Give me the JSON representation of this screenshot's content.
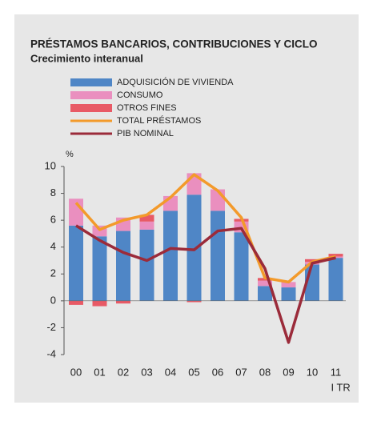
{
  "chart_data": {
    "type": "bar_line",
    "title": "PRÉSTAMOS BANCARIOS, CONTRIBUCIONES Y CICLO",
    "subtitle": "Crecimiento interanual",
    "y_unit": "%",
    "x_note": "I TR",
    "categories": [
      "00",
      "01",
      "02",
      "03",
      "04",
      "05",
      "06",
      "07",
      "08",
      "09",
      "10",
      "11"
    ],
    "series": [
      {
        "name": "ADQUISICIÓN DE VIVIENDA",
        "kind": "bar",
        "color": "#4f86c6",
        "values": [
          5.6,
          4.8,
          5.2,
          5.3,
          6.7,
          7.9,
          6.7,
          5.1,
          1.1,
          1.0,
          2.7,
          3.2
        ]
      },
      {
        "name": "CONSUMO",
        "kind": "bar",
        "color": "#ea8fbf",
        "values": [
          2.0,
          0.8,
          1.0,
          0.6,
          1.1,
          1.6,
          1.6,
          0.8,
          0.4,
          0.4,
          0.2,
          0.1
        ]
      },
      {
        "name": "OTROS FINES",
        "kind": "bar",
        "color": "#e85a66",
        "values": [
          -0.3,
          -0.4,
          -0.2,
          0.5,
          0,
          -0.1,
          0,
          0.2,
          0.2,
          0,
          0.2,
          0.2
        ]
      },
      {
        "name": "TOTAL PRÉSTAMOS",
        "kind": "line",
        "color": "#f39a2b",
        "values": [
          7.3,
          5.3,
          6.0,
          6.4,
          7.7,
          9.4,
          8.2,
          6.2,
          1.7,
          1.4,
          2.9,
          3.3
        ]
      },
      {
        "name": "PIB NOMINAL",
        "kind": "line",
        "color": "#9b2b3a",
        "values": [
          5.6,
          4.5,
          3.6,
          3.0,
          3.9,
          3.8,
          5.2,
          5.4,
          2.4,
          -3.1,
          2.8,
          3.2
        ]
      }
    ],
    "ylim": [
      -4,
      10
    ],
    "yticks": [
      -4,
      -2,
      0,
      2,
      4,
      6,
      8,
      10
    ]
  }
}
